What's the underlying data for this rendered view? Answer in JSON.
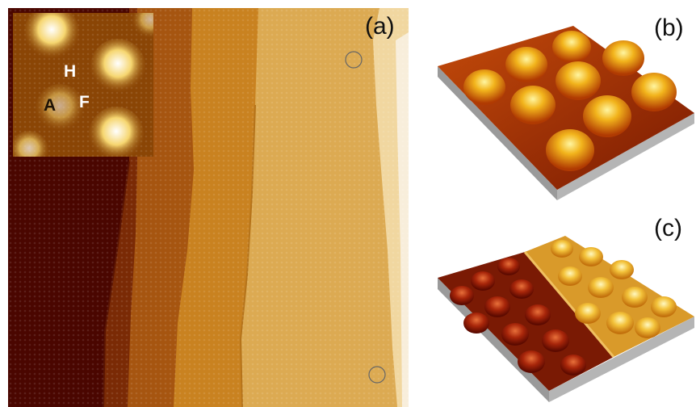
{
  "figure": {
    "panels": [
      {
        "id": "a",
        "label": "(a)"
      },
      {
        "id": "b",
        "label": "(b)"
      },
      {
        "id": "c",
        "label": "(c)"
      }
    ],
    "inset": {
      "sites": [
        {
          "name": "H",
          "color": "#ffffff"
        },
        {
          "name": "A",
          "color": "#1e1206"
        },
        {
          "name": "F",
          "color": "#ffffff"
        }
      ]
    },
    "colors": {
      "colormap_dark": "#4a0600",
      "colormap_mid": "#c9821a",
      "colormap_light": "#f8eedb",
      "side_wall": "#9a9a9a"
    }
  }
}
